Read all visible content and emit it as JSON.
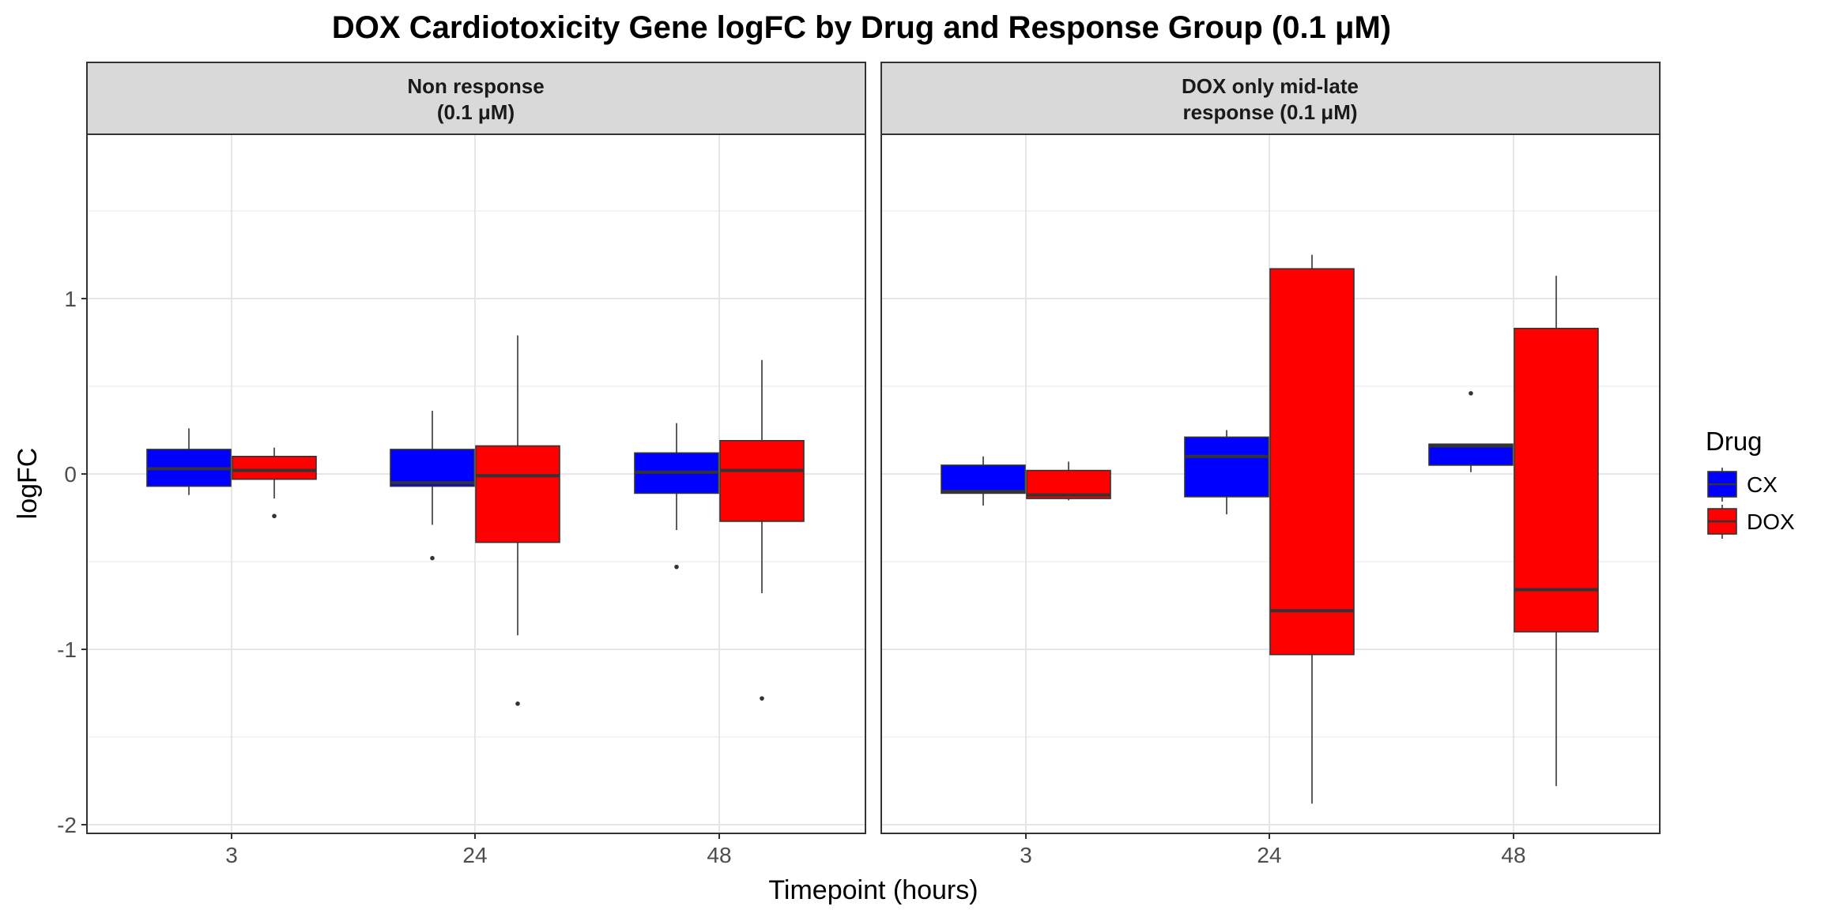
{
  "chart_data": {
    "type": "box",
    "title": "DOX Cardiotoxicity Gene logFC by Drug and Response Group (0.1 μM)",
    "xlabel": "Timepoint (hours)",
    "ylabel": "logFC",
    "ylim": [
      -2.05,
      1.9
    ],
    "yticks": [
      1,
      0,
      -1,
      -2
    ],
    "ytick_labels": [
      "1",
      "0",
      "-1",
      "-2"
    ],
    "categories": [
      "3",
      "24",
      "48"
    ],
    "grid": true,
    "legend": {
      "title": "Drug",
      "position": "right",
      "items": [
        {
          "label": "CX",
          "color": "#0000FF"
        },
        {
          "label": "DOX",
          "color": "#FF0000"
        }
      ]
    },
    "panels": [
      {
        "strip_line1": "Non response",
        "strip_line2": "(0.1 μM)",
        "boxes": [
          {
            "category": "3",
            "drug": "CX",
            "q1": -0.07,
            "median": 0.03,
            "q3": 0.14,
            "whisker_low": -0.12,
            "whisker_high": 0.26,
            "outliers": []
          },
          {
            "category": "3",
            "drug": "DOX",
            "q1": -0.03,
            "median": 0.02,
            "q3": 0.1,
            "whisker_low": -0.14,
            "whisker_high": 0.15,
            "outliers": [
              -0.24
            ]
          },
          {
            "category": "24",
            "drug": "CX",
            "q1": -0.07,
            "median": -0.05,
            "q3": 0.14,
            "whisker_low": -0.29,
            "whisker_high": 0.36,
            "outliers": [
              -0.48
            ]
          },
          {
            "category": "24",
            "drug": "DOX",
            "q1": -0.39,
            "median": -0.01,
            "q3": 0.16,
            "whisker_low": -0.92,
            "whisker_high": 0.79,
            "outliers": [
              -1.31
            ]
          },
          {
            "category": "48",
            "drug": "CX",
            "q1": -0.11,
            "median": 0.01,
            "q3": 0.12,
            "whisker_low": -0.32,
            "whisker_high": 0.29,
            "outliers": [
              -0.53
            ]
          },
          {
            "category": "48",
            "drug": "DOX",
            "q1": -0.27,
            "median": 0.02,
            "q3": 0.19,
            "whisker_low": -0.68,
            "whisker_high": 0.65,
            "outliers": [
              -1.28
            ]
          }
        ]
      },
      {
        "strip_line1": "DOX only mid-late",
        "strip_line2": "response (0.1 μM)",
        "boxes": [
          {
            "category": "3",
            "drug": "CX",
            "q1": -0.11,
            "median": -0.1,
            "q3": 0.05,
            "whisker_low": -0.18,
            "whisker_high": 0.1,
            "outliers": []
          },
          {
            "category": "3",
            "drug": "DOX",
            "q1": -0.14,
            "median": -0.12,
            "q3": 0.02,
            "whisker_low": -0.15,
            "whisker_high": 0.07,
            "outliers": []
          },
          {
            "category": "24",
            "drug": "CX",
            "q1": -0.13,
            "median": 0.1,
            "q3": 0.21,
            "whisker_low": -0.23,
            "whisker_high": 0.25,
            "outliers": []
          },
          {
            "category": "24",
            "drug": "DOX",
            "q1": -1.03,
            "median": -0.78,
            "q3": 1.17,
            "whisker_low": -1.88,
            "whisker_high": 1.25,
            "outliers": []
          },
          {
            "category": "48",
            "drug": "CX",
            "q1": 0.05,
            "median": 0.16,
            "q3": 0.17,
            "whisker_low": 0.01,
            "whisker_high": 0.17,
            "outliers": [
              0.46
            ]
          },
          {
            "category": "48",
            "drug": "DOX",
            "q1": -0.9,
            "median": -0.66,
            "q3": 0.83,
            "whisker_low": -1.78,
            "whisker_high": 1.13,
            "outliers": []
          }
        ]
      }
    ]
  }
}
